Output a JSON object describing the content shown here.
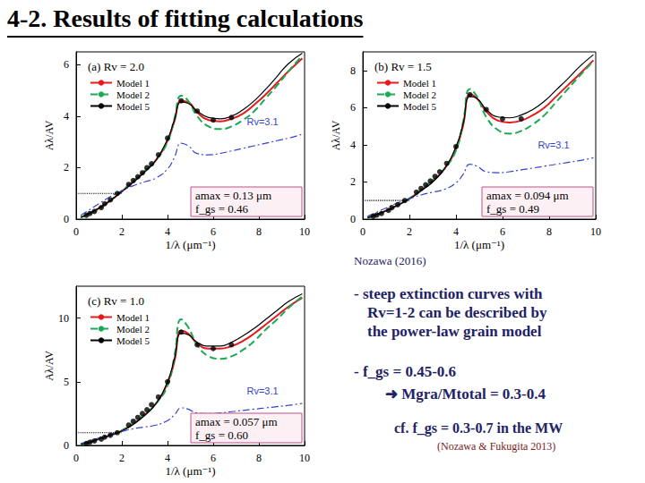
{
  "title": "4-2. Results of fitting calculations",
  "source": "Nozawa (2016)",
  "bullets": [
    [
      "- steep extinction curves with",
      "Rv=1-2 can be described by",
      "the power-law grain model"
    ],
    [
      "- f_gs = 0.45-0.6",
      "➜ Mgra/Mtotal = 0.3-0.4"
    ]
  ],
  "cf": "cf. f_gs = 0.3-0.7 in the MW",
  "reference": "(Nozawa & Fukugita 2013)",
  "chart_data": [
    {
      "type": "line",
      "title": "(a) Rv = 2.0",
      "x_label": "1/λ (μm⁻¹)",
      "y_label": "Aλ/AV",
      "xlim": [
        0,
        10
      ],
      "ylim": [
        0,
        6.5
      ],
      "xticks": [
        0,
        2,
        4,
        6,
        8,
        10
      ],
      "yticks": [
        0,
        2,
        4,
        6
      ],
      "legend": "upper left",
      "annotations": [
        "amax = 0.13 μm",
        "f_gs = 0.46"
      ],
      "series": [
        {
          "name": "Model 1",
          "color": "#e41a1c",
          "line_style": "solid",
          "x": [
            0.2,
            0.5,
            1,
            1.5,
            2,
            2.5,
            3,
            3.5,
            4,
            4.3,
            4.6,
            4.9,
            5.3,
            5.8,
            6.3,
            6.8,
            7.3,
            7.8,
            8.3,
            8.8,
            9.3,
            9.9
          ],
          "values": [
            0.07,
            0.18,
            0.42,
            0.72,
            1.08,
            1.45,
            1.85,
            2.3,
            3.05,
            3.8,
            4.6,
            4.55,
            4.15,
            3.85,
            3.8,
            3.9,
            4.1,
            4.45,
            4.85,
            5.3,
            5.75,
            6.25
          ]
        },
        {
          "name": "Model 2",
          "color": "#1aaa55",
          "line_style": "dashed",
          "x": [
            0.2,
            0.5,
            1,
            1.5,
            2,
            2.5,
            3,
            3.5,
            4,
            4.3,
            4.6,
            4.9,
            5.3,
            5.8,
            6.3,
            6.8,
            7.3,
            7.8,
            8.3,
            8.8,
            9.3,
            9.9
          ],
          "values": [
            0.07,
            0.17,
            0.4,
            0.72,
            1.1,
            1.48,
            1.88,
            2.3,
            3.0,
            3.9,
            4.8,
            4.6,
            4.0,
            3.6,
            3.5,
            3.6,
            3.85,
            4.2,
            4.7,
            5.2,
            5.75,
            6.35
          ]
        },
        {
          "name": "Model 5",
          "color": "#000000",
          "line_style": "solid",
          "x": [
            0.2,
            0.5,
            1,
            1.5,
            2,
            2.5,
            3,
            3.5,
            4,
            4.3,
            4.6,
            4.9,
            5.3,
            5.8,
            6.3,
            6.8,
            7.3,
            7.8,
            8.3,
            8.8,
            9.3,
            9.9
          ],
          "values": [
            0.08,
            0.19,
            0.43,
            0.73,
            1.07,
            1.43,
            1.83,
            2.3,
            3.1,
            3.85,
            4.55,
            4.5,
            4.2,
            3.95,
            3.9,
            4.0,
            4.25,
            4.6,
            5.05,
            5.55,
            6.05,
            6.45
          ]
        },
        {
          "label": "Rv=3.1",
          "color": "#3344cc",
          "line_style": "dashdot",
          "x": [
            0.2,
            0.5,
            1,
            1.5,
            2,
            2.5,
            3,
            3.5,
            4,
            4.3,
            4.6,
            4.9,
            5.3,
            5.8,
            6.3,
            6.8,
            7.3,
            7.8,
            8.3,
            8.8,
            9.3,
            9.9
          ],
          "values": [
            0.15,
            0.32,
            0.6,
            0.88,
            1.1,
            1.3,
            1.45,
            1.6,
            1.95,
            2.4,
            2.95,
            2.85,
            2.55,
            2.5,
            2.55,
            2.65,
            2.75,
            2.85,
            2.95,
            3.05,
            3.15,
            3.3
          ]
        },
        {
          "type": "scatter",
          "color": "#000000",
          "marker": "circle",
          "x": [
            0.45,
            0.6,
            0.8,
            1.1,
            1.25,
            1.5,
            1.8,
            2.3,
            2.5,
            2.7,
            2.9,
            3.1,
            3.3,
            3.6,
            4.0,
            4.6,
            5.3,
            6.0,
            6.8
          ],
          "values": [
            0.15,
            0.22,
            0.3,
            0.45,
            0.6,
            0.75,
            1.0,
            1.35,
            1.5,
            1.65,
            1.8,
            2.0,
            2.15,
            2.5,
            3.15,
            4.6,
            4.2,
            3.85,
            3.95
          ]
        },
        {
          "color": "#000000",
          "line_style": "dotted",
          "x": [
            0,
            2
          ],
          "values": [
            1,
            1
          ]
        }
      ]
    },
    {
      "type": "line",
      "title": "(b) Rv = 1.5",
      "x_label": "1/λ (μm⁻¹)",
      "y_label": "Aλ/AV",
      "xlim": [
        0,
        10
      ],
      "ylim": [
        0,
        9
      ],
      "xticks": [
        0,
        2,
        4,
        6,
        8,
        10
      ],
      "yticks": [
        0,
        2,
        4,
        6,
        8
      ],
      "legend": "upper left",
      "annotations": [
        "amax = 0.094 μm",
        "f_gs = 0.49"
      ],
      "series": [
        {
          "name": "Model 1",
          "color": "#e41a1c",
          "line_style": "solid",
          "x": [
            0.2,
            0.5,
            1,
            1.5,
            2,
            2.5,
            3,
            3.5,
            4,
            4.3,
            4.6,
            4.9,
            5.3,
            5.8,
            6.3,
            6.8,
            7.3,
            7.8,
            8.3,
            8.8,
            9.3,
            9.9
          ],
          "values": [
            0.07,
            0.2,
            0.45,
            0.75,
            1.1,
            1.55,
            2.05,
            2.7,
            3.8,
            5.0,
            6.7,
            6.5,
            5.8,
            5.3,
            5.2,
            5.3,
            5.6,
            6.0,
            6.6,
            7.2,
            7.8,
            8.55
          ]
        },
        {
          "name": "Model 2",
          "color": "#1aaa55",
          "line_style": "dashed",
          "x": [
            0.2,
            0.5,
            1,
            1.5,
            2,
            2.5,
            3,
            3.5,
            4,
            4.3,
            4.6,
            4.9,
            5.3,
            5.8,
            6.3,
            6.8,
            7.3,
            7.8,
            8.3,
            8.8,
            9.3,
            9.9
          ],
          "values": [
            0.07,
            0.19,
            0.43,
            0.75,
            1.12,
            1.58,
            2.1,
            2.7,
            3.7,
            5.2,
            7.0,
            6.6,
            5.5,
            4.8,
            4.6,
            4.75,
            5.1,
            5.6,
            6.3,
            7.0,
            7.7,
            8.5
          ]
        },
        {
          "name": "Model 5",
          "color": "#000000",
          "line_style": "solid",
          "x": [
            0.2,
            0.5,
            1,
            1.5,
            2,
            2.5,
            3,
            3.5,
            4,
            4.3,
            4.6,
            4.9,
            5.3,
            5.8,
            6.3,
            6.8,
            7.3,
            7.8,
            8.3,
            8.8,
            9.3,
            9.9
          ],
          "values": [
            0.08,
            0.21,
            0.46,
            0.76,
            1.09,
            1.52,
            2.0,
            2.7,
            3.9,
            5.1,
            6.6,
            6.5,
            5.9,
            5.5,
            5.45,
            5.6,
            5.9,
            6.35,
            6.95,
            7.55,
            8.2,
            8.85
          ]
        },
        {
          "label": "Rv=3.1",
          "color": "#3344cc",
          "line_style": "dashdot",
          "x": [
            0.2,
            0.5,
            1,
            1.5,
            2,
            2.5,
            3,
            3.5,
            4,
            4.3,
            4.6,
            4.9,
            5.3,
            5.8,
            6.3,
            6.8,
            7.3,
            7.8,
            8.3,
            8.8,
            9.3,
            9.9
          ],
          "values": [
            0.15,
            0.32,
            0.6,
            0.88,
            1.1,
            1.3,
            1.45,
            1.6,
            1.95,
            2.4,
            2.95,
            2.85,
            2.55,
            2.5,
            2.55,
            2.65,
            2.75,
            2.85,
            2.95,
            3.05,
            3.15,
            3.3
          ]
        },
        {
          "type": "scatter",
          "color": "#000000",
          "marker": "circle",
          "x": [
            0.45,
            0.6,
            0.8,
            1.1,
            1.25,
            1.5,
            1.8,
            2.3,
            2.5,
            2.7,
            2.9,
            3.1,
            3.3,
            3.6,
            4.0,
            4.6,
            5.3,
            6.0,
            6.8
          ],
          "values": [
            0.15,
            0.22,
            0.3,
            0.47,
            0.62,
            0.78,
            1.0,
            1.45,
            1.65,
            1.85,
            2.05,
            2.3,
            2.55,
            3.0,
            3.9,
            6.7,
            5.9,
            5.4,
            5.4
          ]
        },
        {
          "color": "#000000",
          "line_style": "dotted",
          "x": [
            0,
            2
          ],
          "values": [
            1,
            1
          ]
        }
      ]
    },
    {
      "type": "line",
      "title": "(c) Rv = 1.0",
      "x_label": "1/λ (μm⁻¹)",
      "y_label": "Aλ/AV",
      "xlim": [
        0,
        10
      ],
      "ylim": [
        0,
        12.5
      ],
      "xticks": [
        0,
        2,
        4,
        6,
        8,
        10
      ],
      "yticks": [
        0,
        5,
        10
      ],
      "legend": "upper left",
      "annotations": [
        "amax = 0.057 μm",
        "f_gs = 0.60"
      ],
      "series": [
        {
          "name": "Model 1",
          "color": "#e41a1c",
          "line_style": "solid",
          "x": [
            0.2,
            0.5,
            1,
            1.5,
            2,
            2.5,
            3,
            3.5,
            4,
            4.3,
            4.6,
            4.9,
            5.3,
            5.8,
            6.3,
            6.8,
            7.3,
            7.8,
            8.3,
            8.8,
            9.3,
            9.9
          ],
          "values": [
            0.06,
            0.2,
            0.5,
            0.8,
            1.15,
            1.7,
            2.4,
            3.3,
            4.9,
            6.6,
            9.0,
            8.8,
            8.0,
            7.6,
            7.6,
            7.8,
            8.2,
            8.8,
            9.5,
            10.2,
            10.9,
            11.6
          ]
        },
        {
          "name": "Model 2",
          "color": "#1aaa55",
          "line_style": "dashed",
          "x": [
            0.2,
            0.5,
            1,
            1.5,
            2,
            2.5,
            3,
            3.5,
            4,
            4.3,
            4.6,
            4.9,
            5.3,
            5.8,
            6.3,
            6.8,
            7.3,
            7.8,
            8.3,
            8.8,
            9.3,
            9.9
          ],
          "values": [
            0.06,
            0.19,
            0.48,
            0.8,
            1.18,
            1.75,
            2.45,
            3.3,
            4.7,
            7.0,
            9.9,
            9.3,
            7.9,
            7.0,
            6.8,
            7.0,
            7.5,
            8.2,
            9.1,
            9.9,
            10.8,
            11.7
          ]
        },
        {
          "name": "Model 5",
          "color": "#000000",
          "line_style": "solid",
          "x": [
            0.2,
            0.5,
            1,
            1.5,
            2,
            2.5,
            3,
            3.5,
            4,
            4.3,
            4.6,
            4.9,
            5.3,
            5.8,
            6.3,
            6.8,
            7.3,
            7.8,
            8.3,
            8.8,
            9.3,
            9.9
          ],
          "values": [
            0.07,
            0.21,
            0.51,
            0.81,
            1.14,
            1.65,
            2.35,
            3.3,
            5.0,
            6.8,
            8.8,
            8.7,
            8.1,
            7.8,
            7.8,
            8.1,
            8.6,
            9.2,
            9.9,
            10.6,
            11.3,
            11.9
          ]
        },
        {
          "label": "Rv=3.1",
          "color": "#3344cc",
          "line_style": "dashdot",
          "x": [
            0.2,
            0.5,
            1,
            1.5,
            2,
            2.5,
            3,
            3.5,
            4,
            4.3,
            4.6,
            4.9,
            5.3,
            5.8,
            6.3,
            6.8,
            7.3,
            7.8,
            8.3,
            8.8,
            9.3,
            9.9
          ],
          "values": [
            0.15,
            0.32,
            0.6,
            0.88,
            1.1,
            1.3,
            1.45,
            1.6,
            1.95,
            2.4,
            2.95,
            2.85,
            2.55,
            2.5,
            2.55,
            2.65,
            2.75,
            2.85,
            2.95,
            3.05,
            3.15,
            3.3
          ]
        },
        {
          "type": "scatter",
          "color": "#000000",
          "marker": "circle",
          "x": [
            0.45,
            0.6,
            0.8,
            1.1,
            1.25,
            1.5,
            1.8,
            2.3,
            2.5,
            2.7,
            2.9,
            3.1,
            3.3,
            3.6,
            4.0,
            4.6,
            5.3,
            6.0,
            6.8
          ],
          "values": [
            0.15,
            0.25,
            0.35,
            0.5,
            0.65,
            0.8,
            1.0,
            1.6,
            1.9,
            2.2,
            2.5,
            2.8,
            3.2,
            3.8,
            5.0,
            8.9,
            7.9,
            7.6,
            7.9
          ]
        },
        {
          "color": "#000000",
          "line_style": "dotted",
          "x": [
            0,
            2
          ],
          "values": [
            1,
            1
          ]
        }
      ]
    }
  ]
}
